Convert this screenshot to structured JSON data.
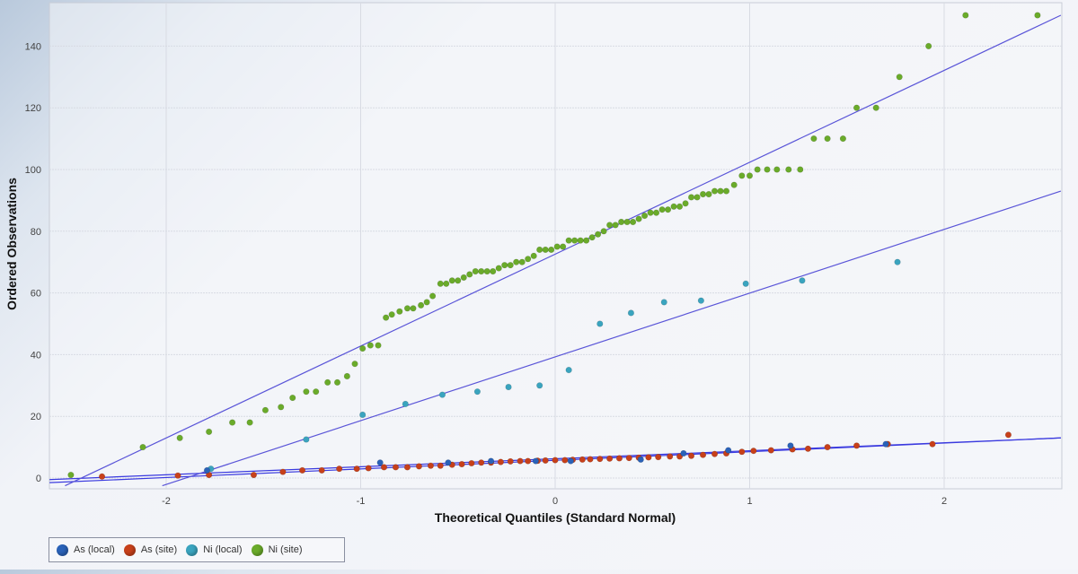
{
  "chart_data": {
    "type": "scatter",
    "title": "",
    "xlabel": "Theoretical Quantiles (Standard Normal)",
    "ylabel": "Ordered Observations",
    "xlim": [
      -2.6,
      2.6
    ],
    "ylim": [
      -2,
      154
    ],
    "x_ticks": [
      -2,
      -1,
      0,
      1,
      2
    ],
    "y_ticks": [
      0,
      20,
      40,
      60,
      80,
      100,
      120,
      140
    ],
    "grid": true,
    "legend_position": "bottom-left",
    "series": [
      {
        "name": "As (local)",
        "color": "#2a62b8",
        "points": [
          [
            -1.79,
            2.5
          ],
          [
            -0.9,
            5
          ],
          [
            -0.55,
            5
          ],
          [
            -0.33,
            5.5
          ],
          [
            -0.1,
            5.5
          ],
          [
            0.08,
            5.5
          ],
          [
            0.44,
            6
          ],
          [
            0.66,
            8
          ],
          [
            0.89,
            9
          ],
          [
            1.21,
            10.5
          ],
          [
            1.7,
            11
          ]
        ]
      },
      {
        "name": "As (site)",
        "color": "#c7401a",
        "points": [
          [
            -2.33,
            0.5
          ],
          [
            -1.94,
            0.8
          ],
          [
            -1.78,
            1
          ],
          [
            -1.55,
            1
          ],
          [
            -1.4,
            2
          ],
          [
            -1.3,
            2.5
          ],
          [
            -1.2,
            2.5
          ],
          [
            -1.11,
            3
          ],
          [
            -1.02,
            3
          ],
          [
            -0.96,
            3.2
          ],
          [
            -0.88,
            3.5
          ],
          [
            -0.82,
            3.5
          ],
          [
            -0.76,
            3.5
          ],
          [
            -0.7,
            3.8
          ],
          [
            -0.64,
            4
          ],
          [
            -0.59,
            4
          ],
          [
            -0.53,
            4.3
          ],
          [
            -0.48,
            4.5
          ],
          [
            -0.43,
            4.8
          ],
          [
            -0.38,
            5
          ],
          [
            -0.33,
            5
          ],
          [
            -0.28,
            5.2
          ],
          [
            -0.23,
            5.4
          ],
          [
            -0.18,
            5.5
          ],
          [
            -0.14,
            5.5
          ],
          [
            -0.09,
            5.6
          ],
          [
            -0.05,
            5.7
          ],
          [
            0.0,
            5.8
          ],
          [
            0.05,
            5.8
          ],
          [
            0.09,
            5.9
          ],
          [
            0.14,
            6
          ],
          [
            0.18,
            6.1
          ],
          [
            0.23,
            6.2
          ],
          [
            0.28,
            6.3
          ],
          [
            0.33,
            6.4
          ],
          [
            0.38,
            6.5
          ],
          [
            0.43,
            6.6
          ],
          [
            0.48,
            6.7
          ],
          [
            0.53,
            6.8
          ],
          [
            0.59,
            7
          ],
          [
            0.64,
            7
          ],
          [
            0.7,
            7.2
          ],
          [
            0.76,
            7.5
          ],
          [
            0.82,
            7.8
          ],
          [
            0.88,
            8
          ],
          [
            0.96,
            8.5
          ],
          [
            1.02,
            8.8
          ],
          [
            1.11,
            9
          ],
          [
            1.22,
            9.3
          ],
          [
            1.3,
            9.5
          ],
          [
            1.4,
            10
          ],
          [
            1.55,
            10.5
          ],
          [
            1.71,
            11
          ],
          [
            1.94,
            11
          ],
          [
            2.33,
            14
          ]
        ]
      },
      {
        "name": "Ni (local)",
        "color": "#3aa4bf",
        "points": [
          [
            -1.77,
            3
          ],
          [
            -1.28,
            12.5
          ],
          [
            -0.99,
            20.5
          ],
          [
            -0.77,
            24
          ],
          [
            -0.58,
            27
          ],
          [
            -0.4,
            28
          ],
          [
            -0.24,
            29.5
          ],
          [
            -0.08,
            30
          ],
          [
            0.07,
            35
          ],
          [
            0.23,
            50
          ],
          [
            0.39,
            53.5
          ],
          [
            0.56,
            57
          ],
          [
            0.75,
            57.5
          ],
          [
            0.98,
            63
          ],
          [
            1.27,
            64
          ],
          [
            1.76,
            70
          ]
        ]
      },
      {
        "name": "Ni (site)",
        "color": "#6aab2a",
        "points": [
          [
            -2.49,
            1
          ],
          [
            -2.12,
            10
          ],
          [
            -1.93,
            13
          ],
          [
            -1.78,
            15
          ],
          [
            -1.66,
            18
          ],
          [
            -1.57,
            18
          ],
          [
            -1.49,
            22
          ],
          [
            -1.41,
            23
          ],
          [
            -1.35,
            26
          ],
          [
            -1.28,
            28
          ],
          [
            -1.23,
            28
          ],
          [
            -1.17,
            31
          ],
          [
            -1.12,
            31
          ],
          [
            -1.07,
            33
          ],
          [
            -1.03,
            37
          ],
          [
            -0.99,
            42
          ],
          [
            -0.95,
            43
          ],
          [
            -0.91,
            43
          ],
          [
            -0.87,
            52
          ],
          [
            -0.84,
            53
          ],
          [
            -0.8,
            54
          ],
          [
            -0.76,
            55
          ],
          [
            -0.73,
            55
          ],
          [
            -0.69,
            56
          ],
          [
            -0.66,
            57
          ],
          [
            -0.63,
            59
          ],
          [
            -0.59,
            63
          ],
          [
            -0.56,
            63
          ],
          [
            -0.53,
            64
          ],
          [
            -0.5,
            64
          ],
          [
            -0.47,
            65
          ],
          [
            -0.44,
            66
          ],
          [
            -0.41,
            67
          ],
          [
            -0.38,
            67
          ],
          [
            -0.35,
            67
          ],
          [
            -0.32,
            67
          ],
          [
            -0.29,
            68
          ],
          [
            -0.26,
            69
          ],
          [
            -0.23,
            69
          ],
          [
            -0.2,
            70
          ],
          [
            -0.17,
            70
          ],
          [
            -0.14,
            71
          ],
          [
            -0.11,
            72
          ],
          [
            -0.08,
            74
          ],
          [
            -0.05,
            74
          ],
          [
            -0.02,
            74
          ],
          [
            0.01,
            75
          ],
          [
            0.04,
            75
          ],
          [
            0.07,
            77
          ],
          [
            0.1,
            77
          ],
          [
            0.13,
            77
          ],
          [
            0.16,
            77
          ],
          [
            0.19,
            78
          ],
          [
            0.22,
            79
          ],
          [
            0.25,
            80
          ],
          [
            0.28,
            82
          ],
          [
            0.31,
            82
          ],
          [
            0.34,
            83
          ],
          [
            0.37,
            83
          ],
          [
            0.4,
            83
          ],
          [
            0.43,
            84
          ],
          [
            0.46,
            85
          ],
          [
            0.49,
            86
          ],
          [
            0.52,
            86
          ],
          [
            0.55,
            87
          ],
          [
            0.58,
            87
          ],
          [
            0.61,
            88
          ],
          [
            0.64,
            88
          ],
          [
            0.67,
            89
          ],
          [
            0.7,
            91
          ],
          [
            0.73,
            91
          ],
          [
            0.76,
            92
          ],
          [
            0.79,
            92
          ],
          [
            0.82,
            93
          ],
          [
            0.85,
            93
          ],
          [
            0.88,
            93
          ],
          [
            0.92,
            95
          ],
          [
            0.96,
            98
          ],
          [
            1.0,
            98
          ],
          [
            1.04,
            100
          ],
          [
            1.09,
            100
          ],
          [
            1.14,
            100
          ],
          [
            1.2,
            100
          ],
          [
            1.26,
            100
          ],
          [
            1.33,
            110
          ],
          [
            1.4,
            110
          ],
          [
            1.48,
            110
          ],
          [
            1.55,
            120
          ],
          [
            1.65,
            120
          ],
          [
            1.77,
            130
          ],
          [
            1.92,
            140
          ],
          [
            2.11,
            150
          ],
          [
            2.48,
            150
          ]
        ]
      }
    ],
    "fit_lines": [
      {
        "series": "As (local)",
        "color": "#3a3adf",
        "from": [
          -2.6,
          -1.5
        ],
        "to": [
          2.6,
          13
        ]
      },
      {
        "series": "As (site)",
        "color": "#3a3adf",
        "from": [
          -2.6,
          -0.5
        ],
        "to": [
          2.6,
          13
        ]
      },
      {
        "series": "Ni (local)",
        "color": "#5a55d8",
        "from": [
          -2.02,
          -2.5
        ],
        "to": [
          2.6,
          93
        ]
      },
      {
        "series": "Ni (site)",
        "color": "#5a55d8",
        "from": [
          -2.52,
          -2.5
        ],
        "to": [
          2.6,
          150
        ]
      }
    ]
  },
  "legend": {
    "items": [
      {
        "label": "As (local)",
        "color": "#2a62b8"
      },
      {
        "label": "As (site)",
        "color": "#c7401a"
      },
      {
        "label": "Ni (local)",
        "color": "#3aa4bf"
      },
      {
        "label": "Ni (site)",
        "color": "#6aab2a"
      }
    ]
  },
  "colors": {
    "grid": "#d8dbe3",
    "plot_border": "#c8ccd6",
    "plot_bg": "#f4f5f9"
  }
}
